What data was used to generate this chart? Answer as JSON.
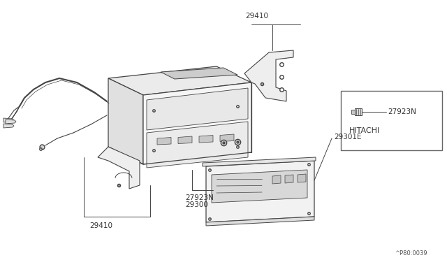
{
  "bg_color": "#ffffff",
  "line_color": "#444444",
  "text_color": "#333333",
  "diagram_code": "^P80:0039",
  "parts": {
    "main_unit_label": "29300",
    "bracket_top_label": "29410",
    "bracket_bottom_label": "29410",
    "faceplate_label": "29301E",
    "knob_label": "27923N",
    "knob_label2": "27923N",
    "hitachi_text": "HITACHI"
  },
  "figsize": [
    6.4,
    3.72
  ],
  "dpi": 100
}
